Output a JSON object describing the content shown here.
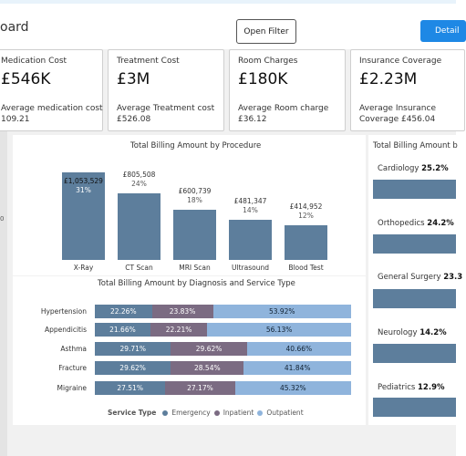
{
  "header": {
    "title": "oard",
    "open_filter_label": "Open Filter",
    "details_label": "Detail"
  },
  "cards": [
    {
      "label": "Medication Cost",
      "value": "£546K",
      "sub1": "Average medication cost",
      "sub2": "109.21"
    },
    {
      "label": "Treatment Cost",
      "value": "£3M",
      "sub1": "Average Treatment cost",
      "sub2": "£526.08"
    },
    {
      "label": "Room Charges",
      "value": "£180K",
      "sub1": "Average Room charge",
      "sub2": "£36.12"
    },
    {
      "label": "Insurance Coverage",
      "value": "£2.23M",
      "sub1": "Average Insurance",
      "sub2": "Coverage £456.04"
    }
  ],
  "left_axis_tick": "0",
  "procedure_chart": {
    "title": "Total Billing Amount by Procedure"
  },
  "diagnosis_chart": {
    "title": "Total Billing Amount by Diagnosis and Service Type",
    "legend_title": "Service Type",
    "legend": [
      "Emergency",
      "Inpatient",
      "Outpatient"
    ]
  },
  "department_chart": {
    "title": "Total Billing Amount b",
    "items": [
      {
        "name": "Cardiology",
        "pct": "25.2%"
      },
      {
        "name": "Orthopedics",
        "pct": "24.2%"
      },
      {
        "name": "General Surgery",
        "pct": "23.3"
      },
      {
        "name": "Neurology",
        "pct": "14.2%"
      },
      {
        "name": "Pediatrics",
        "pct": "12.9%"
      }
    ]
  },
  "colors": {
    "bar": "#5d7e9c",
    "emergency": "#5d7e9c",
    "inpatient": "#7b6b82",
    "outpatient": "#8fb4dc",
    "accent": "#1e88e5"
  },
  "chart_data": [
    {
      "type": "bar",
      "title": "Total Billing Amount by Procedure",
      "categories": [
        "X-Ray",
        "CT Scan",
        "MRI Scan",
        "Ultrasound",
        "Blood Test"
      ],
      "values": [
        1053529,
        805508,
        600739,
        481347,
        414952
      ],
      "value_labels": [
        "£1,053,529",
        "£805,508",
        "£600,739",
        "£481,347",
        "£414,952"
      ],
      "pct_labels": [
        "31%",
        "24%",
        "18%",
        "14%",
        "12%"
      ]
    },
    {
      "type": "bar",
      "stacked": "100%",
      "orientation": "horizontal",
      "title": "Total Billing Amount by Diagnosis and Service Type",
      "categories": [
        "Hypertension",
        "Appendicitis",
        "Asthma",
        "Fracture",
        "Migraine"
      ],
      "series": [
        {
          "name": "Emergency",
          "values": [
            22.26,
            21.66,
            29.71,
            29.62,
            27.51
          ],
          "labels": [
            "22.26%",
            "21.66%",
            "29.71%",
            "29.62%",
            "27.51%"
          ]
        },
        {
          "name": "Inpatient",
          "values": [
            23.83,
            22.21,
            29.62,
            28.54,
            27.17
          ],
          "labels": [
            "23.83%",
            "22.21%",
            "29.62%",
            "28.54%",
            "27.17%"
          ]
        },
        {
          "name": "Outpatient",
          "values": [
            53.92,
            56.13,
            40.66,
            41.84,
            45.32
          ],
          "labels": [
            "53.92%",
            "56.13%",
            "40.66%",
            "41.84%",
            "45.32%"
          ]
        }
      ],
      "legend": "bottom"
    }
  ]
}
